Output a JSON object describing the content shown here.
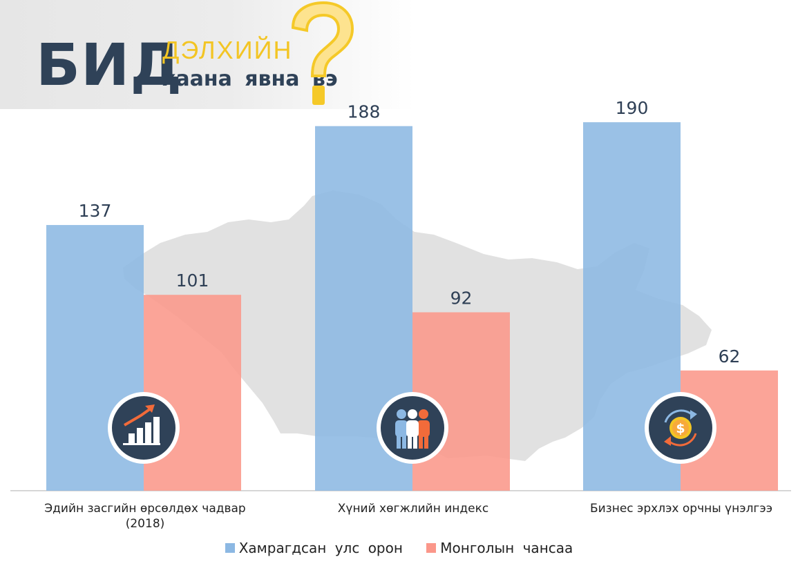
{
  "header": {
    "logo_main": "БИД",
    "logo_sub1": "ДЭЛХИЙН",
    "logo_sub2": "хаана явна вэ"
  },
  "colors": {
    "blue": "#8cb8e3",
    "salmon": "#fb978a",
    "dark": "#2f4258",
    "yellow": "#f3c524"
  },
  "chart_data": {
    "type": "bar",
    "categories": [
      "Эдийн засгийн өрсөлдөх чадвар (2018)",
      "Хүний хөгжлийн индекс",
      "Бизнес эрхлэх орчны үнэлгээ"
    ],
    "category_lines": [
      [
        "Эдийн засгийн өрсөлдөх чадвар",
        "(2018)"
      ],
      [
        "Хүний хөгжлийн индекс"
      ],
      [
        "Бизнес эрхлэх орчны үнэлгээ"
      ]
    ],
    "series": [
      {
        "name": "Хамрагдсан улс орон",
        "values": [
          137,
          188,
          190
        ]
      },
      {
        "name": "Монголын чансаа",
        "values": [
          101,
          92,
          62
        ]
      }
    ],
    "category_icons": [
      "bar-chart-growth-icon",
      "people-group-icon",
      "dollar-exchange-icon"
    ],
    "background_image": "mongolia-map-silhouette",
    "ylim": [
      0,
      200
    ],
    "grid": false,
    "legend_position": "bottom",
    "data_labels": true
  }
}
